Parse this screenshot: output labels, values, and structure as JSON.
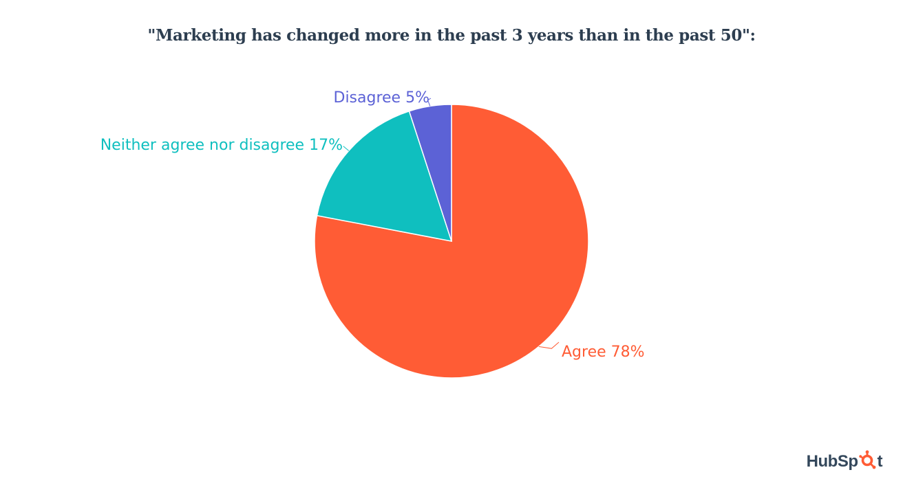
{
  "chart_data": {
    "type": "pie",
    "title": "\"Marketing has changed more in the past 3 years than in the past 50\":",
    "slices": [
      {
        "label": "Agree",
        "value": 78,
        "display": "Agree 78%",
        "color": "#ff5c35"
      },
      {
        "label": "Neither agree nor disagree",
        "value": 17,
        "display": "Neither agree nor disagree 17%",
        "color": "#0fbfbf"
      },
      {
        "label": "Disagree",
        "value": 5,
        "display": "Disagree 5%",
        "color": "#5c62d6"
      }
    ],
    "start_angle": "12 o'clock",
    "direction": "clockwise",
    "legend": "none (direct labels)"
  },
  "brand": {
    "logo_text": "HubSpot",
    "logo_color": "#33475b",
    "sprocket_color": "#ff5c35"
  },
  "colors": {
    "title": "#2d3e50",
    "background": "#ffffff"
  }
}
